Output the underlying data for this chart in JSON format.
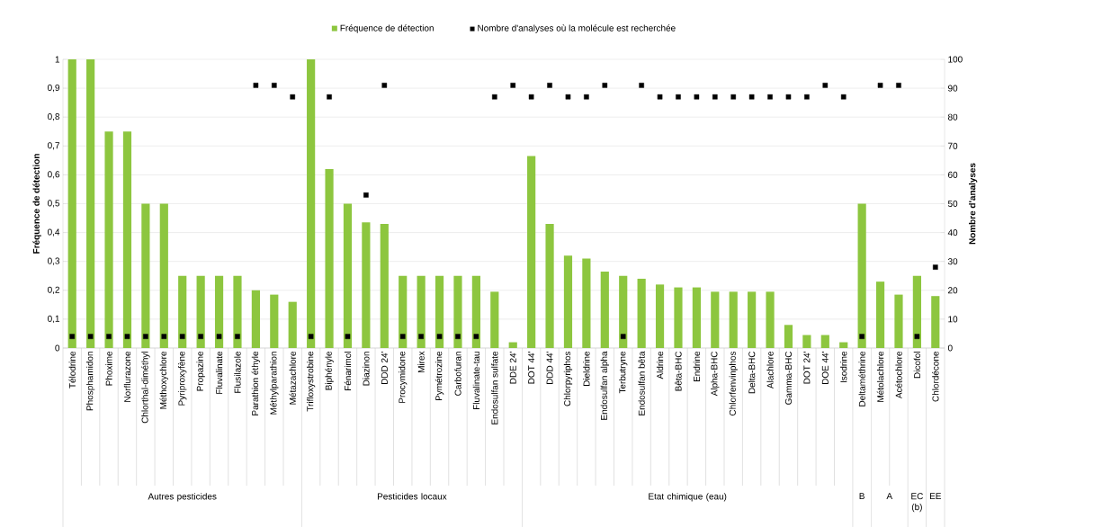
{
  "chart_data": {
    "type": "bar",
    "categories": [
      "Télodrine",
      "Phosphamidon",
      "Phoxime",
      "Norflurazone",
      "Chlorthal-diméthyl",
      "Méthoxychlore",
      "Pyriproxyfène",
      "Propazine",
      "Fluvalinate",
      "Flusilazole",
      "Parathion éthyle",
      "Méthylparathion",
      "Métazachlore",
      "Trifloxystrobine",
      "Biphényle",
      "Fénarimol",
      "Diazinon",
      "DDD 24'",
      "Procymidone",
      "Mirex",
      "Pymétrozine",
      "Carbofuran",
      "Fluvalinate-tau",
      "Endosulfan sulfate",
      "DDE 24'",
      "DOT 44'",
      "DDD 44'",
      "Chlorpyriphos",
      "Dieldrine",
      "Endosulfan alpha",
      "Terbutryne",
      "Endosulfan bêta",
      "Aldrine",
      "Bêta-BHC",
      "Endrine",
      "Alpha-BHC",
      "Chlorfenvinphos",
      "Delta-BHC",
      "Alachlore",
      "Gamma-BHC",
      "DOT 24'",
      "DOE 44'",
      "Isodrine",
      "Deltaméthrine",
      "Métolachlore",
      "Acétochlore",
      "Dicofol",
      "Chlordécone"
    ],
    "series": [
      {
        "name": "Fréquence de détection",
        "color": "#8dc63f",
        "values": [
          1,
          1,
          0.75,
          0.75,
          0.5,
          0.5,
          0.25,
          0.25,
          0.25,
          0.25,
          0.2,
          0.185,
          0.16,
          1,
          0.62,
          0.5,
          0.435,
          0.43,
          0.25,
          0.25,
          0.25,
          0.25,
          0.25,
          0.195,
          0.02,
          0.665,
          0.43,
          0.32,
          0.31,
          0.265,
          0.25,
          0.24,
          0.22,
          0.21,
          0.21,
          0.195,
          0.195,
          0.195,
          0.195,
          0.08,
          0.045,
          0.045,
          0.02,
          0.5,
          0.23,
          0.185,
          0.25,
          0.18
        ]
      },
      {
        "name": "Nombre d'analyses où la molécule est recherchée",
        "type": "scatter",
        "axis": "y2",
        "color": "#000000",
        "values": [
          4,
          4,
          4,
          4,
          4,
          4,
          4,
          4,
          4,
          4,
          91,
          91,
          87,
          4,
          87,
          4,
          53,
          91,
          4,
          4,
          4,
          4,
          4,
          87,
          91,
          87,
          91,
          87,
          87,
          91,
          4,
          91,
          87,
          87,
          87,
          87,
          87,
          87,
          87,
          87,
          87,
          91,
          87,
          4,
          91,
          91,
          4,
          28
        ]
      }
    ],
    "ylabel": "Fréquence de détection",
    "y2label": "Nombre d'analyses",
    "ylim": [
      0,
      1
    ],
    "yticks": [
      0,
      {
        "value": 0.1,
        "label": "0,1"
      },
      {
        "value": 0.2,
        "label": "0,2"
      },
      {
        "value": 0.3,
        "label": "0,3"
      },
      {
        "value": 0.4,
        "label": "0,4"
      },
      {
        "value": 0.5,
        "label": "0,5"
      },
      {
        "value": 0.6,
        "label": "0,6"
      },
      {
        "value": 0.7,
        "label": "0,7"
      },
      {
        "value": 0.8,
        "label": "0,8"
      },
      {
        "value": 0.9,
        "label": "0,9"
      },
      1
    ],
    "y2lim": [
      0,
      100
    ],
    "y2ticks": [
      0,
      10,
      20,
      30,
      40,
      50,
      60,
      70,
      80,
      90,
      100
    ],
    "annotations": [
      "Autres pesticides",
      "Pesticides locaux",
      "Etat chimique (eau)",
      "B",
      "A",
      "EC (b)",
      "EE"
    ],
    "grid": "y",
    "legend": "top",
    "marker": "square"
  }
}
